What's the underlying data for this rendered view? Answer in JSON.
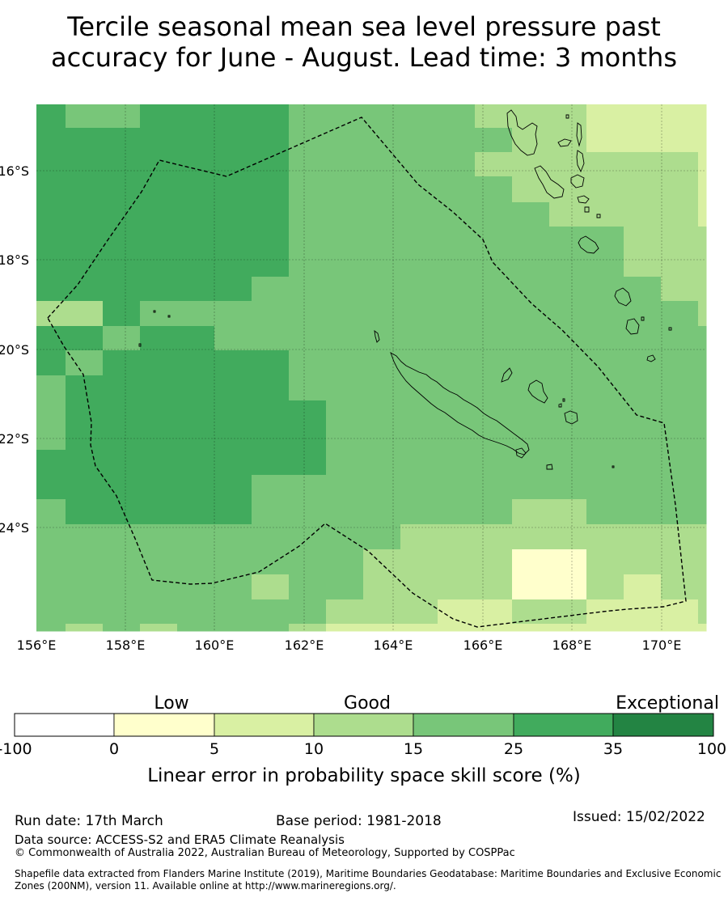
{
  "title": {
    "line1": "Tercile seasonal mean sea level pressure past",
    "line2": "accuracy for June - August. Lead time: 3 months"
  },
  "map": {
    "lat_labels": [
      "16°S",
      "18°S",
      "20°S",
      "22°S",
      "24°S"
    ],
    "lon_labels": [
      "156°E",
      "158°E",
      "160°E",
      "162°E",
      "164°E",
      "166°E",
      "168°E",
      "170°E"
    ],
    "lat_range": [
      -26.5,
      -14.7
    ],
    "lon_range": [
      156,
      171
    ],
    "colors": {
      "c0": "#ffffcc",
      "c1": "#d9f0a3",
      "c2": "#addd8e",
      "c3": "#78c679",
      "c4": "#41ab5d",
      "c5": "#238443"
    }
  },
  "colorbar": {
    "categories": [
      "Low",
      "Good",
      "Exceptional"
    ],
    "ticks": [
      "-100",
      "0",
      "5",
      "10",
      "15",
      "25",
      "35",
      "100"
    ],
    "colors": [
      "#ffffff",
      "#ffffcc",
      "#d9f0a3",
      "#addd8e",
      "#78c679",
      "#41ab5d",
      "#238443"
    ],
    "title": "Linear error in probability space skill score (%)"
  },
  "footer": {
    "run_date": "Run date: 17th March",
    "base_period": "Base period: 1981-2018",
    "issued": "Issued: 15/02/2022",
    "data_source": "Data source: ACCESS-S2 and ERA5 Climate Reanalysis",
    "copyright": "© Commonwealth of Australia 2022, Australian Bureau of Meteorology, Supported by COSPPac",
    "shapefile": "Shapefile data extracted from Flanders Marine Institute (2019), Maritime Boundaries Geodatabase: Maritime Boundaries and Exclusive Economic Zones (200NM), version 11. Available online at http://www.marineregions.org/."
  }
}
